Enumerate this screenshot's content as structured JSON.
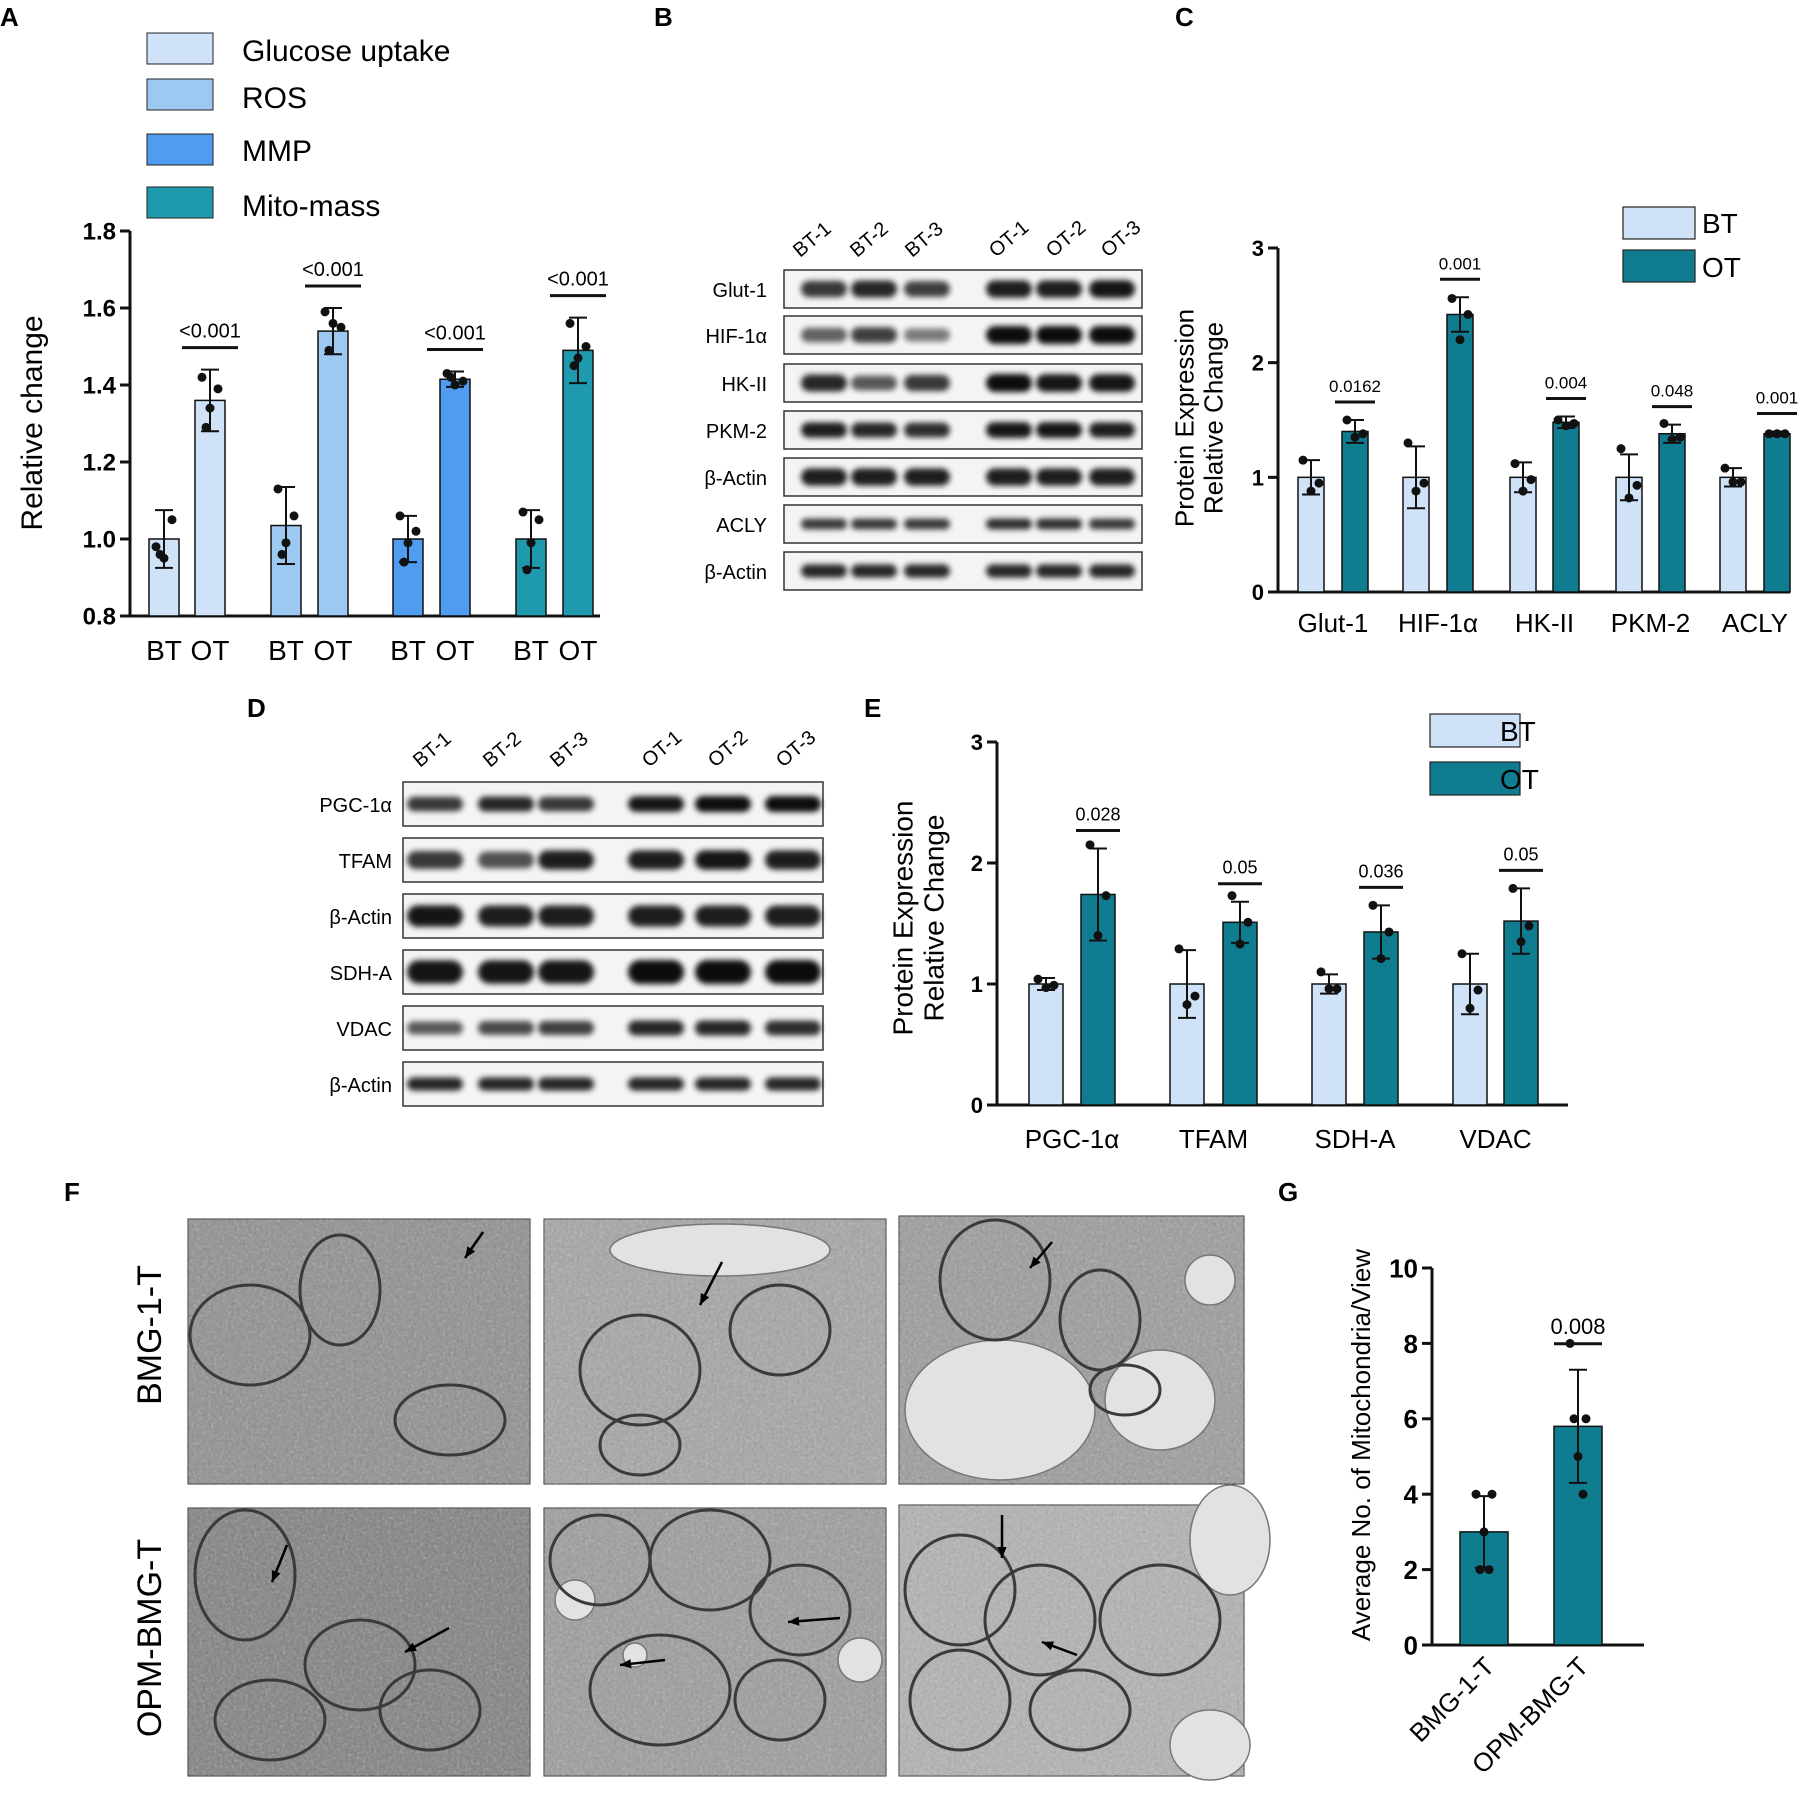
{
  "colors": {
    "bt": "#cfe2f7",
    "ot": "#0f7d8f",
    "glucose": "#cfe2f7",
    "ros": "#9cc8f2",
    "mmp": "#4f9cf0",
    "mito": "#1f99ad",
    "axis": "#111111"
  },
  "panel_labels": [
    "A",
    "B",
    "C",
    "D",
    "E",
    "F",
    "G"
  ],
  "panel_a": {
    "legend": [
      {
        "label": "Glucose uptake",
        "color": "#cfe2f7"
      },
      {
        "label": "ROS",
        "color": "#9cc8f2"
      },
      {
        "label": "MMP",
        "color": "#4f9cf0"
      },
      {
        "label": "Mito-mass",
        "color": "#1f99ad"
      }
    ]
  },
  "panel_b": {
    "lanes": [
      "BT-1",
      "BT-2",
      "BT-3",
      "OT-1",
      "OT-2",
      "OT-3"
    ],
    "rows": [
      "Glut-1",
      "HIF-1α",
      "HK-II",
      "PKM-2",
      "β-Actin",
      "ACLY",
      "β-Actin"
    ]
  },
  "panel_d": {
    "lanes": [
      "BT-1",
      "BT-2",
      "BT-3",
      "OT-1",
      "OT-2",
      "OT-3"
    ],
    "rows": [
      "PGC-1α",
      "TFAM",
      "β-Actin",
      "SDH-A",
      "VDAC",
      "β-Actin"
    ]
  },
  "panel_f": {
    "row_labels": [
      "BMG-1-T",
      "OPM-BMG-T"
    ]
  },
  "chart_data": [
    {
      "panel": "A",
      "type": "bar",
      "ylabel": "Relative change",
      "ylim": [
        0.8,
        1.8
      ],
      "yticks": [
        "0.8",
        "1.0",
        "1.2",
        "1.4",
        "1.6",
        "1.8"
      ],
      "groups": [
        "Glucose uptake",
        "ROS",
        "MMP",
        "Mito-mass"
      ],
      "bar_labels": [
        "BT",
        "OT"
      ],
      "values": [
        [
          1.0,
          1.36
        ],
        [
          1.035,
          1.54
        ],
        [
          1.0,
          1.415
        ],
        [
          1.0,
          1.49
        ]
      ],
      "errors": [
        [
          0.075,
          0.08
        ],
        [
          0.1,
          0.06
        ],
        [
          0.06,
          0.02
        ],
        [
          0.075,
          0.085
        ]
      ],
      "points": [
        [
          [
            0.98,
            1.05,
            0.95,
            0.96
          ],
          [
            1.42,
            1.39,
            1.34,
            1.29
          ]
        ],
        [
          [
            1.13,
            1.06,
            0.99,
            0.96
          ],
          [
            1.59,
            1.55,
            1.56,
            1.49
          ]
        ],
        [
          [
            1.06,
            1.02,
            0.99,
            0.94
          ],
          [
            1.43,
            1.41,
            1.4,
            1.42
          ]
        ],
        [
          [
            1.07,
            1.05,
            0.99,
            0.92
          ],
          [
            1.56,
            1.5,
            1.47,
            1.45
          ]
        ]
      ],
      "pvalues": [
        "<0.001",
        "<0.001",
        "<0.001",
        "<0.001"
      ]
    },
    {
      "panel": "C",
      "type": "bar",
      "ylabel": "Protein Expression\nRelative  Change",
      "ylim": [
        0,
        3
      ],
      "yticks": [
        "0",
        "1",
        "2",
        "3"
      ],
      "categories": [
        "Glut-1",
        "HIF-1α",
        "HK-II",
        "PKM-2",
        "ACLY"
      ],
      "legend": [
        "BT",
        "OT"
      ],
      "series": [
        {
          "name": "BT",
          "values": [
            1.0,
            1.0,
            1.0,
            1.0,
            1.0
          ],
          "errors": [
            0.15,
            0.27,
            0.13,
            0.2,
            0.08
          ],
          "points": [
            [
              1.15,
              0.95,
              0.88
            ],
            [
              1.3,
              0.95,
              0.88
            ],
            [
              1.12,
              0.98,
              0.88
            ],
            [
              1.25,
              0.93,
              0.82
            ],
            [
              1.08,
              0.96,
              0.96
            ]
          ]
        },
        {
          "name": "OT",
          "values": [
            1.4,
            2.42,
            1.48,
            1.38,
            1.38
          ],
          "errors": [
            0.1,
            0.15,
            0.05,
            0.08,
            0.02
          ],
          "points": [
            [
              1.5,
              1.38,
              1.35
            ],
            [
              2.56,
              2.42,
              2.2
            ],
            [
              1.5,
              1.47,
              1.45
            ],
            [
              1.47,
              1.35,
              1.33
            ],
            [
              1.38,
              1.38,
              1.38
            ]
          ]
        }
      ],
      "pvalues": [
        "0.0162",
        "0.001",
        "0.004",
        "0.048",
        "0.001"
      ]
    },
    {
      "panel": "E",
      "type": "bar",
      "ylabel": "Protein Expression\nRelative  Change",
      "ylim": [
        0,
        3
      ],
      "yticks": [
        "0",
        "1",
        "2",
        "3"
      ],
      "categories": [
        "PGC-1α",
        "TFAM",
        "SDH-A",
        "VDAC"
      ],
      "legend": [
        "BT",
        "OT"
      ],
      "series": [
        {
          "name": "BT",
          "values": [
            1.0,
            1.0,
            1.0,
            1.0
          ],
          "errors": [
            0.05,
            0.28,
            0.08,
            0.25
          ],
          "points": [
            [
              1.04,
              0.99,
              0.97
            ],
            [
              1.29,
              0.9,
              0.83
            ],
            [
              1.1,
              0.96,
              0.96
            ],
            [
              1.25,
              0.95,
              0.8
            ]
          ]
        },
        {
          "name": "OT",
          "values": [
            1.74,
            1.51,
            1.43,
            1.52
          ],
          "errors": [
            0.38,
            0.17,
            0.22,
            0.27
          ],
          "points": [
            [
              2.15,
              1.73,
              1.4
            ],
            [
              1.73,
              1.51,
              1.33
            ],
            [
              1.65,
              1.43,
              1.21
            ],
            [
              1.79,
              1.48,
              1.35
            ]
          ]
        }
      ],
      "pvalues": [
        "0.028",
        "0.05",
        "0.036",
        "0.05"
      ]
    },
    {
      "panel": "G",
      "type": "bar",
      "ylabel": "Average No. of Mitochondria/View",
      "ylim": [
        0,
        10
      ],
      "yticks": [
        "0",
        "2",
        "4",
        "6",
        "8",
        "10"
      ],
      "categories": [
        "BMG-1-T",
        "OPM-BMG-T"
      ],
      "values": [
        3.0,
        5.8
      ],
      "errors": [
        0.95,
        1.5
      ],
      "points": [
        [
          4.0,
          4.0,
          3.0,
          2.0,
          2.0
        ],
        [
          8.0,
          6.0,
          5.0,
          6.0,
          4.0
        ]
      ],
      "pvalues": [
        "0.008"
      ]
    }
  ]
}
